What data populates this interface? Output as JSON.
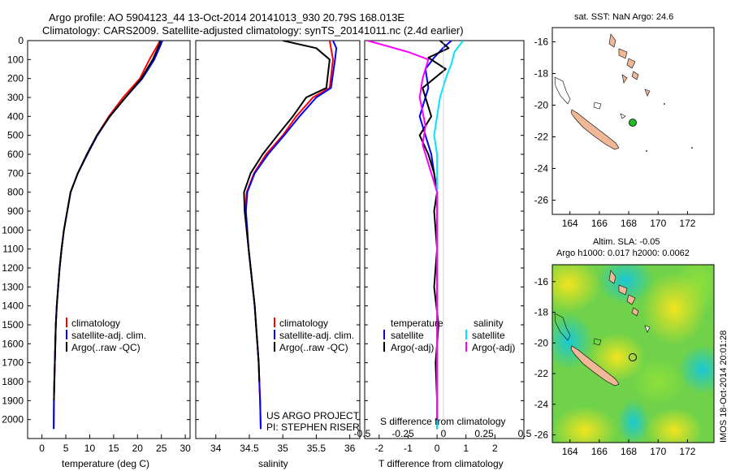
{
  "title_line1": "Argo profile: AO 5904123_44 13-Oct-2014 20141013_930 20.79S 168.013E",
  "title_line2": "Climatology: CARS2009. Satellite-adjusted climatology: synTS_20141011.nc (2.4d earlier)",
  "colors": {
    "climatology": "#ff0000",
    "satellite": "#0000ff",
    "argo": "#000000",
    "sat_diff": "#00e5ff",
    "argo_diff": "#ff00ff",
    "land": "#f0b896",
    "float": "#22bb22"
  },
  "chart_data": [
    {
      "type": "line",
      "panel": "temperature",
      "xlabel": "temperature (deg C)",
      "ylabel": "",
      "xlim": [
        -3,
        31
      ],
      "ylim": [
        2100,
        0
      ],
      "xticks": [
        "0",
        "5",
        "10",
        "15",
        "20",
        "25",
        "30"
      ],
      "xtick_vals": [
        0,
        5,
        10,
        15,
        20,
        25,
        30
      ],
      "yticks": [
        "0",
        "100",
        "200",
        "300",
        "400",
        "500",
        "600",
        "700",
        "800",
        "900",
        "1000",
        "1100",
        "1200",
        "1300",
        "1400",
        "1500",
        "1600",
        "1700",
        "1800",
        "1900",
        "2000"
      ],
      "ytick_vals": [
        0,
        100,
        200,
        300,
        400,
        500,
        600,
        700,
        800,
        900,
        1000,
        1100,
        1200,
        1300,
        1400,
        1500,
        1600,
        1700,
        1800,
        1900,
        2000
      ],
      "legend": [
        "climatology",
        "satellite-adj. clim.",
        "Argo(..raw -QC)"
      ],
      "series": [
        {
          "name": "climatology",
          "color": "#ff0000",
          "x": [
            24.7,
            24.3,
            22.5,
            20.5,
            17,
            14,
            11.5,
            9.5,
            7.5,
            6,
            5.3,
            4.6,
            4.1,
            3.7,
            3.4,
            3.1,
            2.9,
            2.8,
            2.7,
            2.6,
            2.5,
            2.45
          ],
          "y": [
            0,
            20,
            100,
            200,
            300,
            400,
            500,
            600,
            700,
            800,
            900,
            1000,
            1100,
            1200,
            1300,
            1400,
            1500,
            1600,
            1700,
            1800,
            1900,
            2050
          ]
        },
        {
          "name": "satellite-adj. clim.",
          "color": "#0000ff",
          "x": [
            25.2,
            24.9,
            23.5,
            21,
            17.5,
            14.2,
            11.6,
            9.5,
            7.5,
            6,
            5.3,
            4.6,
            4.1,
            3.7,
            3.4,
            3.1,
            2.9,
            2.8,
            2.7,
            2.6,
            2.5,
            2.45
          ],
          "y": [
            0,
            20,
            100,
            200,
            300,
            400,
            500,
            600,
            700,
            800,
            900,
            1000,
            1100,
            1200,
            1300,
            1400,
            1500,
            1600,
            1700,
            1800,
            1900,
            2050
          ]
        },
        {
          "name": "Argo(..raw -QC)",
          "color": "#000000",
          "x": [
            24.8,
            24.6,
            23.2,
            20.8,
            17.5,
            14.2,
            11.5,
            9.4,
            7.5,
            6,
            5.3,
            4.6,
            4.1,
            3.7,
            3.4,
            3.1,
            2.9,
            2.8,
            2.7,
            2.6,
            2.5
          ],
          "y": [
            0,
            20,
            100,
            200,
            300,
            400,
            500,
            600,
            700,
            800,
            900,
            1000,
            1100,
            1200,
            1300,
            1400,
            1500,
            1600,
            1700,
            1800,
            1900
          ]
        }
      ]
    },
    {
      "type": "line",
      "panel": "salinity",
      "xlabel": "salinity",
      "xlim": [
        33.7,
        36.15
      ],
      "ylim": [
        2100,
        0
      ],
      "xticks": [
        "34",
        "34.5",
        "35",
        "35.5",
        "36"
      ],
      "xtick_vals": [
        34,
        34.5,
        35,
        35.5,
        36
      ],
      "legend": [
        "climatology",
        "satellite-adj. clim.",
        "Argo(..raw -QC)"
      ],
      "annotation": [
        "US ARGO PROJECT",
        "PI: STEPHEN RISER"
      ],
      "series": [
        {
          "name": "climatology",
          "color": "#ff0000",
          "x": [
            35.7,
            35.72,
            35.75,
            35.7,
            35.45,
            35.2,
            35.0,
            34.75,
            34.57,
            34.46,
            34.44,
            34.46,
            34.49,
            34.52,
            34.55,
            34.58,
            34.6,
            34.62,
            34.64,
            34.65,
            34.66,
            34.67
          ],
          "y": [
            0,
            40,
            100,
            250,
            300,
            400,
            500,
            600,
            700,
            800,
            900,
            1000,
            1100,
            1200,
            1300,
            1400,
            1500,
            1600,
            1700,
            1800,
            1900,
            2050
          ]
        },
        {
          "name": "satellite-adj. clim.",
          "color": "#0000ff",
          "x": [
            35.75,
            35.8,
            35.78,
            35.72,
            35.5,
            35.25,
            35.02,
            34.78,
            34.58,
            34.47,
            34.45,
            34.47,
            34.49,
            34.52,
            34.55,
            34.58,
            34.6,
            34.62,
            34.64,
            34.65,
            34.66,
            34.67
          ],
          "y": [
            0,
            40,
            100,
            250,
            300,
            400,
            500,
            600,
            700,
            800,
            900,
            1000,
            1100,
            1200,
            1300,
            1400,
            1500,
            1600,
            1700,
            1800,
            1900,
            2050
          ]
        },
        {
          "name": "Argo(..raw -QC)",
          "color": "#000000",
          "x": [
            35.0,
            35.5,
            35.7,
            35.65,
            35.35,
            35.15,
            34.92,
            34.7,
            34.52,
            34.42,
            34.43,
            34.46,
            34.49,
            34.52,
            34.55,
            34.58,
            34.6,
            34.62,
            34.64,
            34.65
          ],
          "y": [
            0,
            40,
            100,
            250,
            300,
            400,
            500,
            600,
            700,
            800,
            900,
            1000,
            1100,
            1200,
            1300,
            1400,
            1500,
            1600,
            1700,
            1800
          ]
        }
      ]
    },
    {
      "type": "line",
      "panel": "differences",
      "xlabel": "T difference from climatology",
      "xlabel2": "S difference from climatology",
      "xlim": [
        -2.5,
        3.0
      ],
      "ylim": [
        2100,
        0
      ],
      "xticks": [
        "-2",
        "-1",
        "0",
        "1",
        "2"
      ],
      "xtick_vals": [
        -2,
        -1,
        0,
        1,
        2
      ],
      "xticks2": [
        "-0.5",
        "-0.25",
        "0",
        "0.25",
        "0.5"
      ],
      "xtick2_vals": [
        -0.5,
        -0.25,
        0,
        0.25,
        0.5
      ],
      "legend_heads": [
        "temperature",
        "salinity"
      ],
      "legend": [
        "satellite",
        "Argo(-adj)",
        "satellite",
        "Argo(-adj)"
      ],
      "series": [
        {
          "name": "satellite",
          "color": "#0000ff",
          "x": [
            0.5,
            0.2,
            -0.1,
            -0.4,
            -0.3,
            -0.6,
            -0.4,
            -0.2,
            -0.1,
            0,
            0,
            0,
            0,
            0,
            0,
            0,
            0,
            0
          ],
          "y": [
            0,
            40,
            90,
            150,
            250,
            400,
            500,
            600,
            700,
            800,
            900,
            1100,
            1300,
            1500,
            1600,
            1700,
            1900,
            2050
          ]
        },
        {
          "name": "Argo(-adj)",
          "color": "#000000",
          "x": [
            0.1,
            0.4,
            -0.3,
            0.3,
            -0.5,
            -0.2,
            -0.6,
            -0.3,
            -0.1,
            0,
            -0.1,
            0,
            -0.1,
            0.05,
            -0.05,
            0,
            0
          ],
          "y": [
            0,
            40,
            90,
            150,
            250,
            400,
            500,
            600,
            700,
            800,
            900,
            1100,
            1300,
            1500,
            1700,
            1900,
            2050
          ]
        },
        {
          "name": "satellite",
          "color": "#00e5ff",
          "x": [
            0.9,
            0.6,
            0.5,
            0.3,
            0.1,
            0,
            -0.1,
            0,
            0,
            0,
            0,
            0,
            0,
            0,
            0
          ],
          "y": [
            0,
            60,
            120,
            200,
            300,
            400,
            500,
            600,
            700,
            800,
            1000,
            1300,
            1600,
            1900,
            2050
          ]
        },
        {
          "name": "Argo(-adj)",
          "color": "#ff00ff",
          "x": [
            -2.4,
            -1.0,
            -0.3,
            -0.5,
            -0.6,
            -0.4,
            -0.5,
            -0.2,
            0,
            0,
            0,
            0
          ],
          "y": [
            0,
            60,
            100,
            200,
            300,
            450,
            550,
            700,
            800,
            1000,
            1400,
            2000
          ]
        }
      ]
    }
  ],
  "map_top": {
    "title": "sat. SST: NaN Argo: 24.6",
    "xticks": [
      "164",
      "166",
      "168",
      "170",
      "172"
    ],
    "yticks": [
      "-16",
      "-18",
      "-20",
      "-22",
      "-24",
      "-26"
    ]
  },
  "map_bottom": {
    "title_line1": "Altim. SLA: -0.05",
    "title_line2": "Argo h1000: 0.017 h2000: 0.0062",
    "xticks": [
      "164",
      "166",
      "168",
      "170",
      "172"
    ],
    "yticks": [
      "-16",
      "-18",
      "-20",
      "-22",
      "-24",
      "-26"
    ]
  },
  "stamp": "IMOS 18-Oct-2014 20:01:28"
}
